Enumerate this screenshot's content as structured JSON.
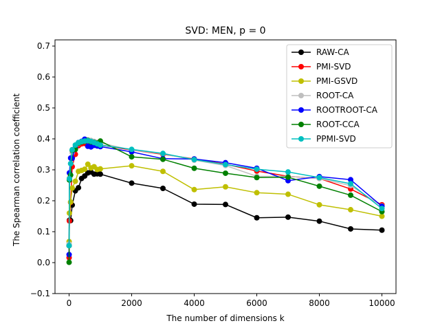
{
  "chart_data": {
    "type": "line",
    "title": "SVD: MEN, p = 0",
    "xlabel": "The number of dimensions k",
    "ylabel": "The Spearman correlation coefficient",
    "xlim": [
      -450,
      10450
    ],
    "ylim": [
      -0.1,
      0.72
    ],
    "xticks": [
      0,
      2000,
      4000,
      6000,
      8000,
      10000
    ],
    "yticks": [
      -0.1,
      0.0,
      0.1,
      0.2,
      0.3,
      0.4,
      0.5,
      0.6,
      0.7
    ],
    "grid": false,
    "legend_position": "top-right",
    "series": [
      {
        "name": "RAW-CA",
        "color": "#000000",
        "x": [
          1,
          10,
          50,
          100,
          200,
          300,
          400,
          500,
          600,
          700,
          800,
          900,
          1000,
          2000,
          3000,
          4000,
          5000,
          6000,
          7000,
          8000,
          9000,
          10000
        ],
        "y": [
          0.055,
          0.137,
          0.136,
          0.186,
          0.232,
          0.242,
          0.272,
          0.28,
          0.29,
          0.293,
          0.286,
          0.287,
          0.286,
          0.257,
          0.24,
          0.189,
          0.188,
          0.145,
          0.147,
          0.134,
          0.109,
          0.105
        ]
      },
      {
        "name": "PMI-SVD",
        "color": "#ff0000",
        "x": [
          1,
          10,
          50,
          100,
          200,
          300,
          400,
          500,
          600,
          700,
          800,
          900,
          1000,
          2000,
          3000,
          4000,
          5000,
          6000,
          7000,
          8000,
          9000,
          10000
        ],
        "y": [
          0.016,
          0.135,
          0.195,
          0.31,
          0.35,
          0.378,
          0.384,
          0.385,
          0.386,
          0.386,
          0.384,
          0.382,
          0.38,
          0.364,
          0.35,
          0.335,
          0.318,
          0.296,
          0.279,
          0.272,
          0.238,
          0.187
        ]
      },
      {
        "name": "PMI-GSVD",
        "color": "#bfbf00",
        "x": [
          1,
          10,
          50,
          100,
          200,
          300,
          400,
          500,
          600,
          700,
          800,
          900,
          1000,
          2000,
          3000,
          4000,
          5000,
          6000,
          7000,
          8000,
          9000,
          10000
        ],
        "y": [
          0.068,
          0.16,
          0.196,
          0.241,
          0.263,
          0.295,
          0.298,
          0.302,
          0.318,
          0.306,
          0.31,
          0.301,
          0.303,
          0.313,
          0.295,
          0.236,
          0.245,
          0.226,
          0.221,
          0.187,
          0.171,
          0.15
        ]
      },
      {
        "name": "ROOT-CA",
        "color": "#bfbfbf",
        "x": [
          1,
          10,
          50,
          100,
          200,
          300,
          400,
          500,
          600,
          700,
          800,
          900,
          1000,
          2000,
          3000,
          4000,
          5000,
          6000,
          7000,
          8000,
          9000,
          10000
        ],
        "y": [
          0.06,
          0.274,
          0.32,
          0.355,
          0.372,
          0.385,
          0.392,
          0.395,
          0.397,
          0.395,
          0.392,
          0.389,
          0.387,
          0.364,
          0.352,
          0.331,
          0.314,
          0.279,
          0.279,
          0.272,
          0.249,
          0.183
        ]
      },
      {
        "name": "ROOTROOT-CA",
        "color": "#0000ff",
        "x": [
          1,
          10,
          50,
          100,
          200,
          300,
          400,
          500,
          600,
          700,
          800,
          900,
          1000,
          2000,
          3000,
          4000,
          5000,
          6000,
          7000,
          8000,
          9000,
          10000
        ],
        "y": [
          0.026,
          0.29,
          0.338,
          0.337,
          0.37,
          0.388,
          0.392,
          0.399,
          0.376,
          0.374,
          0.379,
          0.377,
          0.375,
          0.358,
          0.336,
          0.335,
          0.323,
          0.305,
          0.265,
          0.278,
          0.268,
          0.182
        ]
      },
      {
        "name": "ROOT-CCA",
        "color": "#008000",
        "x": [
          1,
          10,
          50,
          100,
          200,
          300,
          400,
          500,
          600,
          700,
          800,
          900,
          1000,
          2000,
          3000,
          4000,
          5000,
          6000,
          7000,
          8000,
          9000,
          10000
        ],
        "y": [
          0.001,
          0.267,
          0.283,
          0.363,
          0.366,
          0.386,
          0.39,
          0.392,
          0.395,
          0.39,
          0.389,
          0.386,
          0.393,
          0.342,
          0.334,
          0.305,
          0.289,
          0.275,
          0.276,
          0.247,
          0.218,
          0.165
        ]
      },
      {
        "name": "PPMI-SVD",
        "color": "#00bfbf",
        "x": [
          1,
          10,
          50,
          100,
          200,
          300,
          400,
          500,
          600,
          700,
          800,
          900,
          1000,
          2000,
          3000,
          4000,
          5000,
          6000,
          7000,
          8000,
          9000,
          10000
        ],
        "y": [
          0.055,
          0.271,
          0.32,
          0.365,
          0.38,
          0.388,
          0.391,
          0.393,
          0.394,
          0.392,
          0.388,
          0.384,
          0.38,
          0.366,
          0.353,
          0.333,
          0.317,
          0.302,
          0.293,
          0.275,
          0.255,
          0.175
        ]
      }
    ]
  }
}
